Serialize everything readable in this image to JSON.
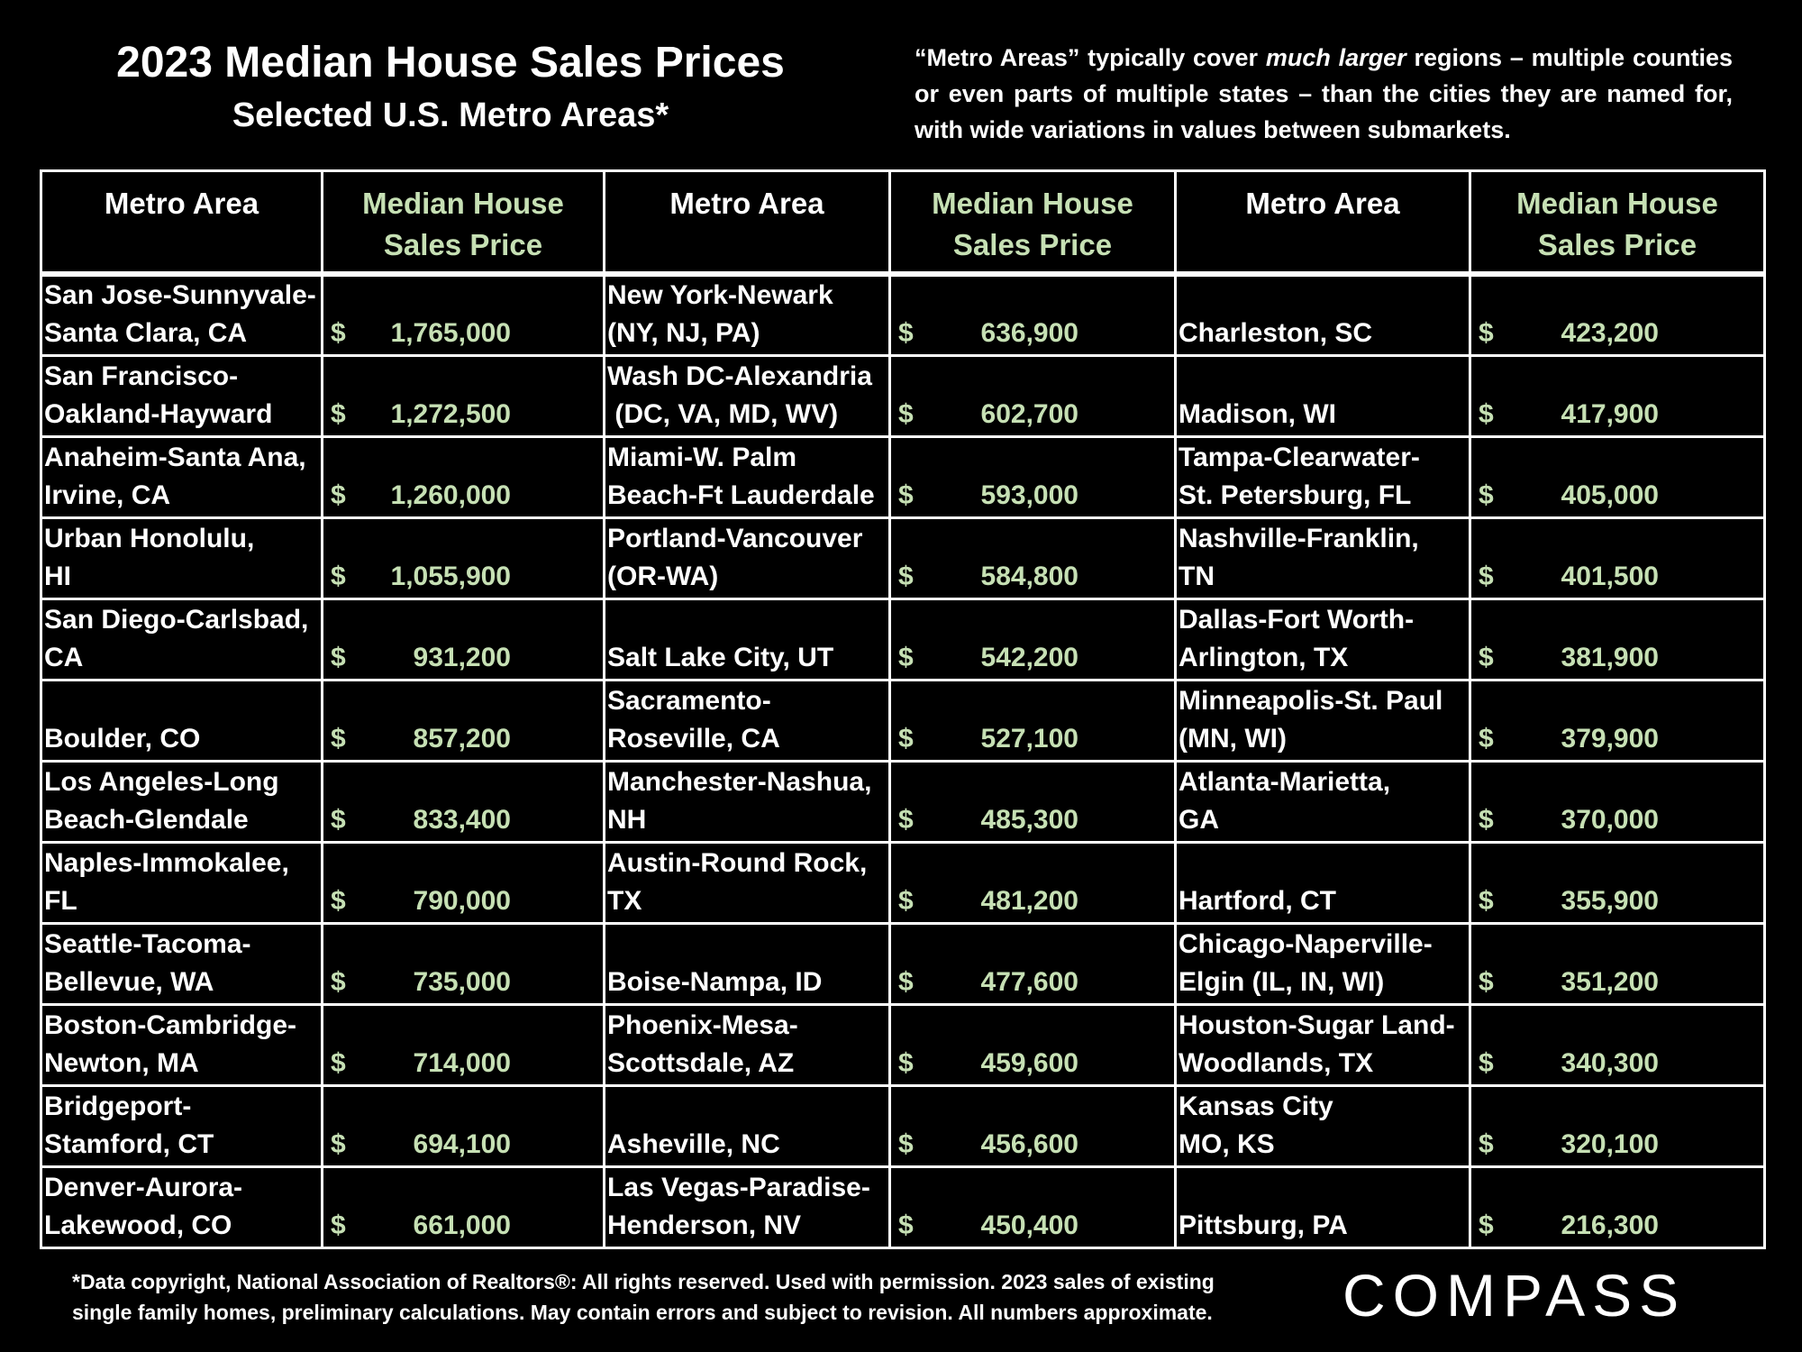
{
  "header": {
    "title": "2023 Median House Sales Prices",
    "subtitle": "Selected U.S. Metro Areas*"
  },
  "note": {
    "part1": "“Metro Areas” typically cover ",
    "emph": "much larger",
    "part2": " regions – multiple counties or even parts of multiple states – than the cities they are named for, with wide variations in values between submarkets."
  },
  "columns": {
    "metro": "Metro Area",
    "price_line1": "Median House",
    "price_line2": "Sales Price"
  },
  "chart_data": {
    "type": "table",
    "title": "2023 Median House Sales Prices",
    "subtitle": "Selected U.S. Metro Areas*",
    "columns": [
      "Metro Area",
      "Median House Sales Price"
    ],
    "rows": [
      {
        "area_l1": "San Jose-Sunnyvale-",
        "area_l2": "Santa Clara, CA",
        "dollar": "$",
        "amount": "1,765,000",
        "value": 1765000
      },
      {
        "area_l1": "San Francisco-",
        "area_l2": "Oakland-Hayward",
        "dollar": "$",
        "amount": "1,272,500",
        "value": 1272500
      },
      {
        "area_l1": "Anaheim-Santa Ana,",
        "area_l2": "Irvine, CA",
        "dollar": "$",
        "amount": "1,260,000",
        "value": 1260000
      },
      {
        "area_l1": "Urban Honolulu,",
        "area_l2": "HI",
        "dollar": "$",
        "amount": "1,055,900",
        "value": 1055900
      },
      {
        "area_l1": "San Diego-Carlsbad,",
        "area_l2": "CA",
        "dollar": "$",
        "amount": "931,200",
        "value": 931200
      },
      {
        "area_l1": "",
        "area_l2": "Boulder, CO",
        "dollar": "$",
        "amount": "857,200",
        "value": 857200
      },
      {
        "area_l1": "Los Angeles-Long",
        "area_l2": "Beach-Glendale",
        "dollar": "$",
        "amount": "833,400",
        "value": 833400
      },
      {
        "area_l1": "Naples-Immokalee,",
        "area_l2": "FL",
        "dollar": "$",
        "amount": "790,000",
        "value": 790000
      },
      {
        "area_l1": "Seattle-Tacoma-",
        "area_l2": "Bellevue, WA",
        "dollar": "$",
        "amount": "735,000",
        "value": 735000
      },
      {
        "area_l1": "Boston-Cambridge-",
        "area_l2": "Newton, MA",
        "dollar": "$",
        "amount": "714,000",
        "value": 714000
      },
      {
        "area_l1": "Bridgeport-",
        "area_l2": "Stamford, CT",
        "dollar": "$",
        "amount": "694,100",
        "value": 694100
      },
      {
        "area_l1": "Denver-Aurora-",
        "area_l2": "Lakewood, CO",
        "dollar": "$",
        "amount": "661,000",
        "value": 661000
      },
      {
        "area_l1": "New York-Newark",
        "area_l2": "(NY, NJ, PA)",
        "dollar": "$",
        "amount": "636,900",
        "value": 636900
      },
      {
        "area_l1": "Wash DC-Alexandria",
        "area_l2": " (DC, VA, MD, WV)",
        "dollar": "$",
        "amount": "602,700",
        "value": 602700
      },
      {
        "area_l1": "Miami-W. Palm",
        "area_l2": "Beach-Ft Lauderdale",
        "dollar": "$",
        "amount": "593,000",
        "value": 593000
      },
      {
        "area_l1": "Portland-Vancouver",
        "area_l2": "(OR-WA)",
        "dollar": "$",
        "amount": "584,800",
        "value": 584800
      },
      {
        "area_l1": "",
        "area_l2": "Salt Lake City, UT",
        "dollar": "$",
        "amount": "542,200",
        "value": 542200
      },
      {
        "area_l1": "Sacramento-",
        "area_l2": "Roseville, CA",
        "dollar": "$",
        "amount": "527,100",
        "value": 527100
      },
      {
        "area_l1": "Manchester-Nashua,",
        "area_l2": "NH",
        "dollar": "$",
        "amount": "485,300",
        "value": 485300
      },
      {
        "area_l1": "Austin-Round Rock,",
        "area_l2": "TX",
        "dollar": "$",
        "amount": "481,200",
        "value": 481200
      },
      {
        "area_l1": "",
        "area_l2": "Boise-Nampa, ID",
        "dollar": "$",
        "amount": "477,600",
        "value": 477600
      },
      {
        "area_l1": "Phoenix-Mesa-",
        "area_l2": "Scottsdale, AZ",
        "dollar": "$",
        "amount": "459,600",
        "value": 459600
      },
      {
        "area_l1": "",
        "area_l2": "Asheville, NC",
        "dollar": "$",
        "amount": "456,600",
        "value": 456600
      },
      {
        "area_l1": "Las Vegas-Paradise-",
        "area_l2": "Henderson, NV",
        "dollar": "$",
        "amount": "450,400",
        "value": 450400
      },
      {
        "area_l1": "",
        "area_l2": "Charleston, SC",
        "dollar": "$",
        "amount": "423,200",
        "value": 423200
      },
      {
        "area_l1": "",
        "area_l2": "Madison, WI",
        "dollar": "$",
        "amount": "417,900",
        "value": 417900
      },
      {
        "area_l1": "Tampa-Clearwater-",
        "area_l2": "St. Petersburg, FL",
        "dollar": "$",
        "amount": "405,000",
        "value": 405000
      },
      {
        "area_l1": "Nashville-Franklin,",
        "area_l2": "TN",
        "dollar": "$",
        "amount": "401,500",
        "value": 401500
      },
      {
        "area_l1": "Dallas-Fort Worth-",
        "area_l2": "Arlington, TX",
        "dollar": "$",
        "amount": "381,900",
        "value": 381900
      },
      {
        "area_l1": "Minneapolis-St. Paul",
        "area_l2": "(MN, WI)",
        "dollar": "$",
        "amount": "379,900",
        "value": 379900
      },
      {
        "area_l1": "Atlanta-Marietta,",
        "area_l2": "GA",
        "dollar": "$",
        "amount": "370,000",
        "value": 370000
      },
      {
        "area_l1": "",
        "area_l2": "Hartford, CT",
        "dollar": "$",
        "amount": "355,900",
        "value": 355900
      },
      {
        "area_l1": "Chicago-Naperville-",
        "area_l2": "Elgin (IL, IN, WI)",
        "dollar": "$",
        "amount": "351,200",
        "value": 351200
      },
      {
        "area_l1": "Houston-Sugar Land-",
        "area_l2": "Woodlands, TX",
        "dollar": "$",
        "amount": "340,300",
        "value": 340300
      },
      {
        "area_l1": "Kansas City",
        "area_l2": "MO, KS",
        "dollar": "$",
        "amount": "320,100",
        "value": 320100
      },
      {
        "area_l1": "",
        "area_l2": "Pittsburg, PA",
        "dollar": "$",
        "amount": "216,300",
        "value": 216300
      }
    ]
  },
  "footnote": {
    "line1": "*Data copyright, National Association of Realtors®: All rights reserved. Used with permission. 2023 sales of existing",
    "line2": "single family homes, preliminary calculations. May contain errors and subject to revision. All numbers approximate."
  },
  "logo": {
    "text": "COMPASS"
  },
  "colors": {
    "price_text": "#c6e0b4",
    "background": "#000000",
    "text": "#ffffff"
  }
}
